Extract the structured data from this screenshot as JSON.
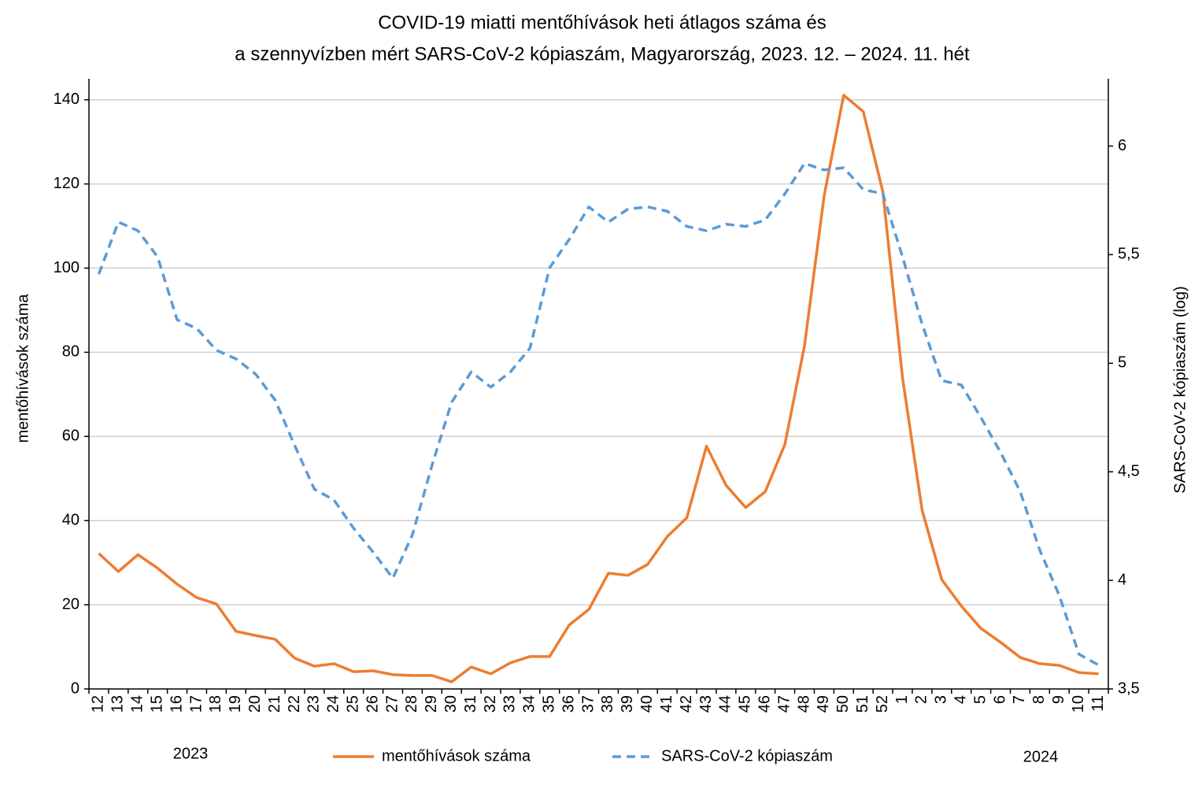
{
  "chart_data": {
    "type": "line",
    "title": [
      "COVID-19 miatti mentőhívások heti átlagos száma és",
      "a szennyvízben mért SARS-CoV-2 kópiaszám, Magyarország, 2023. 12. – 2024. 11. hét"
    ],
    "y_label": "mentőhívások száma",
    "y2_label": "SARS-CoV-2 kópiaszám (log)",
    "annotations": [
      "2023",
      "2024"
    ],
    "categories": [
      "12",
      "13",
      "14",
      "15",
      "16",
      "17",
      "18",
      "19",
      "20",
      "21",
      "22",
      "23",
      "24",
      "25",
      "26",
      "27",
      "28",
      "29",
      "30",
      "31",
      "32",
      "33",
      "34",
      "35",
      "36",
      "37",
      "38",
      "39",
      "40",
      "41",
      "42",
      "43",
      "44",
      "45",
      "46",
      "47",
      "48",
      "49",
      "50",
      "51",
      "52",
      "1",
      "2",
      "3",
      "4",
      "5",
      "6",
      "7",
      "8",
      "9",
      "10",
      "11"
    ],
    "series": [
      {
        "name": "mentőhívások száma",
        "color": "#ed7d31",
        "dash": false,
        "values": [
          32.2,
          27.9,
          31.9,
          28.7,
          24.9,
          21.7,
          20.2,
          13.7,
          12.7,
          11.8,
          7.3,
          5.4,
          6.0,
          4.1,
          4.3,
          3.4,
          3.2,
          3.2,
          1.7,
          5.2,
          3.6,
          6.2,
          7.7,
          7.7,
          15.2,
          18.9,
          27.5,
          27.0,
          29.6,
          36.2,
          40.7,
          57.7,
          48.4,
          43.1,
          46.9,
          58.1,
          81.5,
          117.1,
          141.1,
          137.2,
          118.1,
          74,
          42.5,
          26,
          19.7,
          14.4,
          11.1,
          7.5,
          6,
          5.6,
          3.9,
          3.6
        ]
      },
      {
        "name": "SARS-CoV-2 kópiaszám",
        "color": "#5b9bd5",
        "dash": true,
        "axis": "y2",
        "values": [
          5.41,
          5.65,
          5.61,
          5.49,
          5.2,
          5.16,
          5.06,
          5.02,
          4.95,
          4.83,
          4.62,
          4.42,
          4.37,
          4.24,
          4.13,
          4.01,
          4.21,
          4.53,
          4.82,
          4.96,
          4.89,
          4.96,
          5.07,
          5.44,
          5.57,
          5.72,
          5.65,
          5.71,
          5.72,
          5.7,
          5.63,
          5.61,
          5.64,
          5.63,
          5.66,
          5.78,
          5.92,
          5.89,
          5.9,
          5.8,
          5.78,
          5.49,
          5.18,
          4.92,
          4.9,
          4.75,
          4.59,
          4.41,
          4.14,
          3.93,
          3.66,
          3.61
        ]
      }
    ],
    "ylim": [
      0,
      145
    ],
    "yticks": [
      0,
      20,
      40,
      60,
      80,
      100,
      120,
      140
    ],
    "y2lim": [
      3.5,
      6.31
    ],
    "y2ticks": [
      {
        "value": 3.5,
        "label": "3,5"
      },
      4,
      {
        "value": 4.5,
        "label": "4,5"
      },
      5,
      {
        "value": 5.5,
        "label": "5,5"
      },
      6
    ],
    "grid": true,
    "legend": "bottom"
  }
}
